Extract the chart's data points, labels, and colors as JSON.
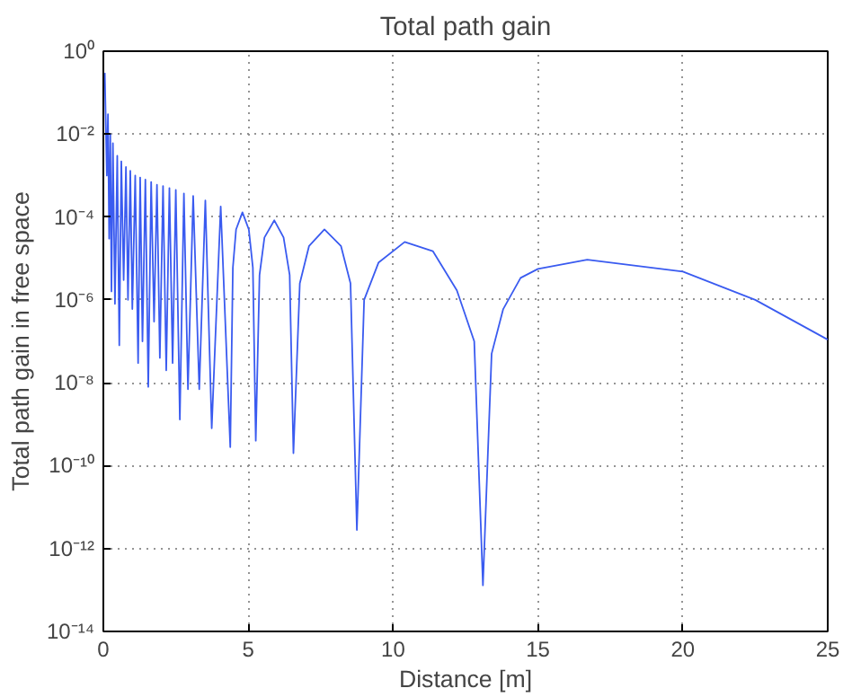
{
  "chart_data": {
    "type": "line",
    "title": "Total path gain",
    "xlabel": "Distance [m]",
    "ylabel": "Total path gain in free space",
    "log": "y",
    "grid": true,
    "line_style": "solid",
    "xlim": [
      0,
      25
    ],
    "xticks": [
      0,
      5,
      10,
      15,
      20,
      25
    ],
    "ylim": [
      1e-14,
      1
    ],
    "yticks": [
      {
        "value": 1e-14,
        "label": "10⁻¹⁴"
      },
      {
        "value": 1e-12,
        "label": "10⁻¹²"
      },
      {
        "value": 1e-10,
        "label": "10⁻¹⁰"
      },
      {
        "value": 1e-08,
        "label": "10⁻⁸"
      },
      {
        "value": 1e-06,
        "label": "10⁻⁶"
      },
      {
        "value": 0.0001,
        "label": "10⁻⁴"
      },
      {
        "value": 0.01,
        "label": "10⁻²"
      },
      {
        "value": 1,
        "label": "10⁰"
      }
    ],
    "series": [
      {
        "color": "#3a5bf0",
        "x": [
          0.05,
          0.12,
          0.16,
          0.2,
          0.24,
          0.28,
          0.33,
          0.4,
          0.48,
          0.55,
          0.62,
          0.7,
          0.78,
          0.85,
          0.93,
          1.0,
          1.1,
          1.2,
          1.27,
          1.35,
          1.45,
          1.55,
          1.65,
          1.75,
          1.85,
          1.95,
          2.06,
          2.17,
          2.28,
          2.39,
          2.5,
          2.64,
          2.78,
          2.92,
          3.1,
          3.31,
          3.52,
          3.74,
          4.05,
          4.38,
          4.47,
          4.58,
          4.8,
          5.02,
          5.16,
          5.26,
          5.39,
          5.56,
          5.9,
          6.22,
          6.43,
          6.56,
          6.78,
          7.1,
          7.63,
          8.2,
          8.53,
          8.75,
          9.0,
          9.5,
          10.4,
          11.37,
          12.2,
          12.8,
          13.1,
          13.4,
          13.8,
          14.4,
          15,
          16.7,
          20,
          22.5,
          25
        ],
        "values": [
          0.3,
          0.001,
          0.03,
          3e-05,
          0.01,
          1.6e-06,
          0.006,
          8e-07,
          0.003,
          8e-08,
          0.0022,
          3e-06,
          0.0016,
          1e-06,
          0.0013,
          6e-07,
          0.001,
          3e-08,
          0.0009,
          1e-07,
          0.0008,
          8e-09,
          0.0007,
          3e-07,
          0.0006,
          4e-08,
          0.00056,
          2e-08,
          0.0005,
          3e-08,
          0.00045,
          1.3e-09,
          0.00037,
          7e-09,
          0.00032,
          7e-09,
          0.00025,
          8e-10,
          0.00018,
          2.8e-10,
          6e-06,
          5e-05,
          0.00013,
          5e-05,
          6e-06,
          4e-10,
          4e-06,
          3.2e-05,
          8.3e-05,
          3.2e-05,
          4e-06,
          2e-10,
          2.5e-06,
          2e-05,
          5e-05,
          2e-05,
          2.5e-06,
          2.8e-12,
          1e-06,
          8e-06,
          2.5e-05,
          1.5e-05,
          1.7e-06,
          1e-07,
          1.3e-13,
          5e-08,
          6e-07,
          3.4e-06,
          5.6e-06,
          9.3e-06,
          4.8e-06,
          1e-06,
          1.1e-07
        ]
      }
    ]
  }
}
